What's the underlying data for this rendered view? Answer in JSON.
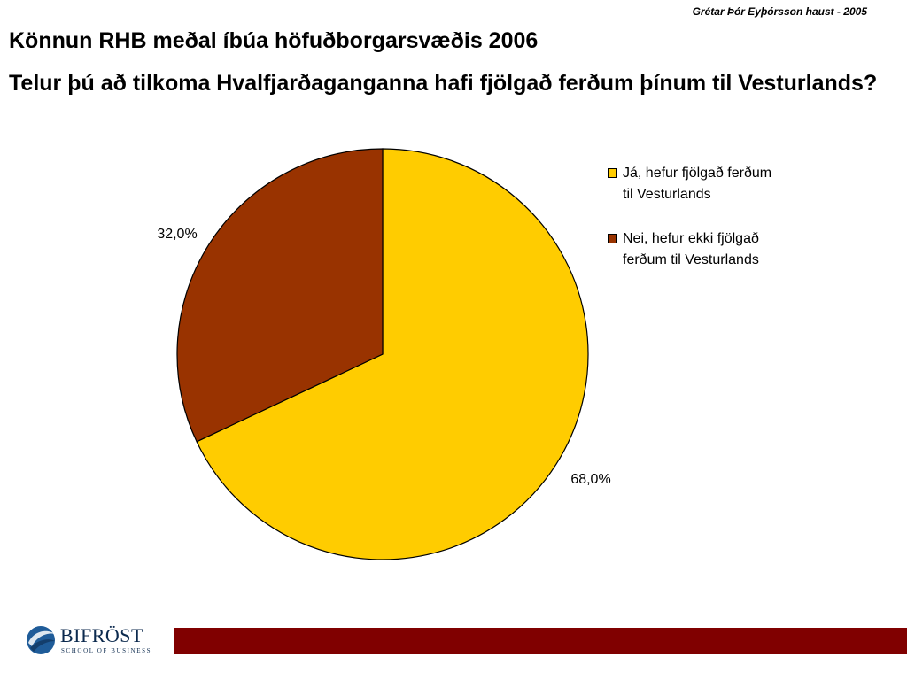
{
  "author": "Grétar Þór Eyþórsson haust - 2005",
  "title": "Könnun RHB meðal íbúa höfuðborgarsvæðis 2006",
  "question": "Telur þú að tilkoma Hvalfjarðaganganna hafi fjölgað ferðum þínum til Vesturlands?",
  "chart_data": {
    "type": "pie",
    "slices": [
      {
        "label": "Já, hefur fjölgað ferðum til Vesturlands",
        "value": 68.0,
        "display": "68,0%",
        "color": "#ffcc00"
      },
      {
        "label": "Nei, hefur ekki fjölgað ferðum til Vesturlands",
        "value": 32.0,
        "display": "32,0%",
        "color": "#993300"
      }
    ],
    "legend_position": "right"
  },
  "legend": {
    "items": [
      {
        "label": "Já, hefur fjölgað ferðum til Vesturlands",
        "color": "#ffcc00"
      },
      {
        "label": "Nei, hefur ekki fjölgað ferðum til Vesturlands",
        "color": "#993300"
      }
    ]
  },
  "logo": {
    "name": "BIFRÖST",
    "tagline": "SCHOOL OF BUSINESS"
  },
  "footer": {
    "bar_color": "#800000"
  }
}
